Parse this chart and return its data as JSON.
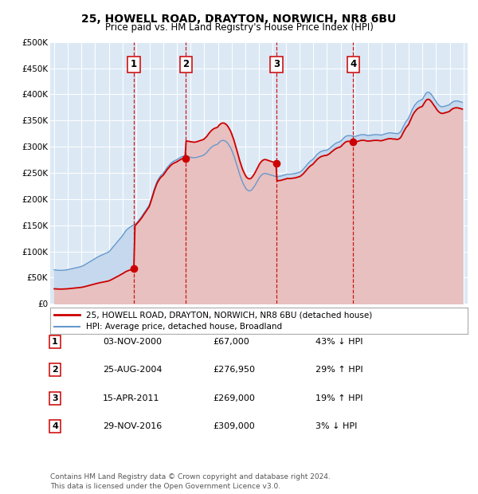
{
  "title": "25, HOWELL ROAD, DRAYTON, NORWICH, NR8 6BU",
  "subtitle": "Price paid vs. HM Land Registry's House Price Index (HPI)",
  "ylim": [
    0,
    500000
  ],
  "yticks": [
    0,
    50000,
    100000,
    150000,
    200000,
    250000,
    300000,
    350000,
    400000,
    450000,
    500000
  ],
  "ytick_labels": [
    "£0",
    "£50K",
    "£100K",
    "£150K",
    "£200K",
    "£250K",
    "£300K",
    "£350K",
    "£400K",
    "£450K",
    "£500K"
  ],
  "xlim_start": 1994.7,
  "xlim_end": 2025.3,
  "background_color": "#ffffff",
  "plot_bg_color": "#dce9f5",
  "grid_color": "#ffffff",
  "sale_color": "#cc0000",
  "hpi_color": "#6699cc",
  "hpi_fill_color": "#c5d8ed",
  "sale_fill_color": "#e8c0c0",
  "transactions": [
    {
      "num": 1,
      "date_str": "03-NOV-2000",
      "date_x": 2000.84,
      "price": 67000
    },
    {
      "num": 2,
      "date_str": "25-AUG-2004",
      "date_x": 2004.65,
      "price": 276950
    },
    {
      "num": 3,
      "date_str": "15-APR-2011",
      "date_x": 2011.29,
      "price": 269000
    },
    {
      "num": 4,
      "date_str": "29-NOV-2016",
      "date_x": 2016.91,
      "price": 309000
    }
  ],
  "legend_sale_label": "25, HOWELL ROAD, DRAYTON, NORWICH, NR8 6BU (detached house)",
  "legend_hpi_label": "HPI: Average price, detached house, Broadland",
  "footnote": "Contains HM Land Registry data © Crown copyright and database right 2024.\nThis data is licensed under the Open Government Licence v3.0.",
  "table_rows": [
    [
      "1",
      "03-NOV-2000",
      "£67,000",
      "43% ↓ HPI"
    ],
    [
      "2",
      "25-AUG-2004",
      "£276,950",
      "29% ↑ HPI"
    ],
    [
      "3",
      "15-APR-2011",
      "£269,000",
      "19% ↑ HPI"
    ],
    [
      "4",
      "29-NOV-2016",
      "£309,000",
      "3% ↓ HPI"
    ]
  ],
  "hpi_index": [
    [
      1995.0,
      100.0
    ],
    [
      1995.08,
      99.5
    ],
    [
      1995.17,
      99.0
    ],
    [
      1995.25,
      98.8
    ],
    [
      1995.33,
      98.5
    ],
    [
      1995.42,
      98.2
    ],
    [
      1995.5,
      98.0
    ],
    [
      1995.58,
      98.3
    ],
    [
      1995.67,
      98.6
    ],
    [
      1995.75,
      99.0
    ],
    [
      1995.83,
      99.4
    ],
    [
      1995.92,
      99.8
    ],
    [
      1996.0,
      100.5
    ],
    [
      1996.08,
      101.2
    ],
    [
      1996.17,
      102.0
    ],
    [
      1996.25,
      102.8
    ],
    [
      1996.33,
      103.5
    ],
    [
      1996.42,
      104.2
    ],
    [
      1996.5,
      105.0
    ],
    [
      1996.58,
      105.8
    ],
    [
      1996.67,
      106.5
    ],
    [
      1996.75,
      107.3
    ],
    [
      1996.83,
      108.2
    ],
    [
      1996.92,
      109.0
    ],
    [
      1997.0,
      110.0
    ],
    [
      1997.08,
      111.5
    ],
    [
      1997.17,
      113.0
    ],
    [
      1997.25,
      115.0
    ],
    [
      1997.33,
      117.0
    ],
    [
      1997.42,
      119.0
    ],
    [
      1997.5,
      121.0
    ],
    [
      1997.58,
      123.0
    ],
    [
      1997.67,
      125.0
    ],
    [
      1997.75,
      127.0
    ],
    [
      1997.83,
      129.0
    ],
    [
      1997.92,
      131.0
    ],
    [
      1998.0,
      133.0
    ],
    [
      1998.08,
      135.0
    ],
    [
      1998.17,
      137.0
    ],
    [
      1998.25,
      139.0
    ],
    [
      1998.33,
      140.5
    ],
    [
      1998.42,
      142.0
    ],
    [
      1998.5,
      143.5
    ],
    [
      1998.58,
      145.0
    ],
    [
      1998.67,
      146.5
    ],
    [
      1998.75,
      148.0
    ],
    [
      1998.83,
      149.5
    ],
    [
      1998.92,
      151.0
    ],
    [
      1999.0,
      153.0
    ],
    [
      1999.08,
      156.0
    ],
    [
      1999.17,
      160.0
    ],
    [
      1999.25,
      164.0
    ],
    [
      1999.33,
      168.0
    ],
    [
      1999.42,
      172.0
    ],
    [
      1999.5,
      176.0
    ],
    [
      1999.58,
      180.0
    ],
    [
      1999.67,
      184.0
    ],
    [
      1999.75,
      188.0
    ],
    [
      1999.83,
      192.0
    ],
    [
      1999.92,
      196.0
    ],
    [
      2000.0,
      200.0
    ],
    [
      2000.08,
      205.0
    ],
    [
      2000.17,
      210.0
    ],
    [
      2000.25,
      215.0
    ],
    [
      2000.33,
      218.0
    ],
    [
      2000.42,
      221.0
    ],
    [
      2000.5,
      224.0
    ],
    [
      2000.58,
      226.0
    ],
    [
      2000.67,
      228.0
    ],
    [
      2000.75,
      230.0
    ],
    [
      2000.83,
      232.0
    ],
    [
      2000.92,
      234.0
    ],
    [
      2001.0,
      236.0
    ],
    [
      2001.08,
      240.0
    ],
    [
      2001.17,
      244.0
    ],
    [
      2001.25,
      248.0
    ],
    [
      2001.33,
      252.0
    ],
    [
      2001.42,
      257.0
    ],
    [
      2001.5,
      262.0
    ],
    [
      2001.58,
      267.0
    ],
    [
      2001.67,
      272.0
    ],
    [
      2001.75,
      277.0
    ],
    [
      2001.83,
      282.0
    ],
    [
      2001.92,
      287.0
    ],
    [
      2002.0,
      294.0
    ],
    [
      2002.08,
      304.0
    ],
    [
      2002.17,
      315.0
    ],
    [
      2002.25,
      326.0
    ],
    [
      2002.33,
      337.0
    ],
    [
      2002.42,
      347.0
    ],
    [
      2002.5,
      356.0
    ],
    [
      2002.58,
      363.0
    ],
    [
      2002.67,
      369.0
    ],
    [
      2002.75,
      374.0
    ],
    [
      2002.83,
      378.0
    ],
    [
      2002.92,
      381.0
    ],
    [
      2003.0,
      384.0
    ],
    [
      2003.08,
      389.0
    ],
    [
      2003.17,
      394.0
    ],
    [
      2003.25,
      399.0
    ],
    [
      2003.33,
      403.0
    ],
    [
      2003.42,
      407.0
    ],
    [
      2003.5,
      411.0
    ],
    [
      2003.58,
      414.0
    ],
    [
      2003.67,
      417.0
    ],
    [
      2003.75,
      419.0
    ],
    [
      2003.83,
      421.0
    ],
    [
      2003.92,
      422.0
    ],
    [
      2004.0,
      424.0
    ],
    [
      2004.08,
      426.0
    ],
    [
      2004.17,
      428.0
    ],
    [
      2004.25,
      430.0
    ],
    [
      2004.33,
      432.0
    ],
    [
      2004.42,
      433.0
    ],
    [
      2004.5,
      433.5
    ],
    [
      2004.58,
      433.0
    ],
    [
      2004.67,
      432.5
    ],
    [
      2004.75,
      432.0
    ],
    [
      2004.83,
      431.5
    ],
    [
      2004.92,
      431.0
    ],
    [
      2005.0,
      430.5
    ],
    [
      2005.08,
      430.0
    ],
    [
      2005.17,
      429.5
    ],
    [
      2005.25,
      429.0
    ],
    [
      2005.33,
      429.5
    ],
    [
      2005.42,
      430.0
    ],
    [
      2005.5,
      431.0
    ],
    [
      2005.58,
      432.0
    ],
    [
      2005.67,
      433.0
    ],
    [
      2005.75,
      434.0
    ],
    [
      2005.83,
      435.0
    ],
    [
      2005.92,
      436.0
    ],
    [
      2006.0,
      438.0
    ],
    [
      2006.08,
      441.0
    ],
    [
      2006.17,
      444.0
    ],
    [
      2006.25,
      448.0
    ],
    [
      2006.33,
      452.0
    ],
    [
      2006.42,
      456.0
    ],
    [
      2006.5,
      459.0
    ],
    [
      2006.58,
      462.0
    ],
    [
      2006.67,
      464.0
    ],
    [
      2006.75,
      466.0
    ],
    [
      2006.83,
      467.0
    ],
    [
      2006.92,
      468.0
    ],
    [
      2007.0,
      470.0
    ],
    [
      2007.08,
      474.0
    ],
    [
      2007.17,
      477.0
    ],
    [
      2007.25,
      479.0
    ],
    [
      2007.33,
      480.0
    ],
    [
      2007.42,
      480.0
    ],
    [
      2007.5,
      479.0
    ],
    [
      2007.58,
      477.0
    ],
    [
      2007.67,
      474.0
    ],
    [
      2007.75,
      470.0
    ],
    [
      2007.83,
      465.0
    ],
    [
      2007.92,
      459.0
    ],
    [
      2008.0,
      452.0
    ],
    [
      2008.08,
      444.0
    ],
    [
      2008.17,
      435.0
    ],
    [
      2008.25,
      425.0
    ],
    [
      2008.33,
      415.0
    ],
    [
      2008.42,
      404.0
    ],
    [
      2008.5,
      393.0
    ],
    [
      2008.58,
      382.0
    ],
    [
      2008.67,
      372.0
    ],
    [
      2008.75,
      363.0
    ],
    [
      2008.83,
      355.0
    ],
    [
      2008.92,
      348.0
    ],
    [
      2009.0,
      342.0
    ],
    [
      2009.08,
      337.0
    ],
    [
      2009.17,
      334.0
    ],
    [
      2009.25,
      332.0
    ],
    [
      2009.33,
      332.0
    ],
    [
      2009.42,
      333.0
    ],
    [
      2009.5,
      336.0
    ],
    [
      2009.58,
      340.0
    ],
    [
      2009.67,
      345.0
    ],
    [
      2009.75,
      350.0
    ],
    [
      2009.83,
      356.0
    ],
    [
      2009.92,
      362.0
    ],
    [
      2010.0,
      368.0
    ],
    [
      2010.08,
      373.0
    ],
    [
      2010.17,
      377.0
    ],
    [
      2010.25,
      380.0
    ],
    [
      2010.33,
      382.0
    ],
    [
      2010.42,
      383.0
    ],
    [
      2010.5,
      383.0
    ],
    [
      2010.58,
      382.0
    ],
    [
      2010.67,
      381.0
    ],
    [
      2010.75,
      380.0
    ],
    [
      2010.83,
      379.0
    ],
    [
      2010.92,
      378.0
    ],
    [
      2011.0,
      377.0
    ],
    [
      2011.08,
      376.0
    ],
    [
      2011.17,
      375.0
    ],
    [
      2011.25,
      374.0
    ],
    [
      2011.33,
      374.0
    ],
    [
      2011.42,
      374.0
    ],
    [
      2011.5,
      375.0
    ],
    [
      2011.58,
      375.0
    ],
    [
      2011.67,
      376.0
    ],
    [
      2011.75,
      377.0
    ],
    [
      2011.83,
      378.0
    ],
    [
      2011.92,
      379.0
    ],
    [
      2012.0,
      380.0
    ],
    [
      2012.08,
      381.0
    ],
    [
      2012.17,
      381.0
    ],
    [
      2012.25,
      381.0
    ],
    [
      2012.33,
      381.0
    ],
    [
      2012.42,
      381.5
    ],
    [
      2012.5,
      382.0
    ],
    [
      2012.58,
      382.5
    ],
    [
      2012.67,
      383.0
    ],
    [
      2012.75,
      384.0
    ],
    [
      2012.83,
      385.0
    ],
    [
      2012.92,
      386.0
    ],
    [
      2013.0,
      387.0
    ],
    [
      2013.08,
      389.0
    ],
    [
      2013.17,
      392.0
    ],
    [
      2013.25,
      395.0
    ],
    [
      2013.33,
      399.0
    ],
    [
      2013.42,
      403.0
    ],
    [
      2013.5,
      407.0
    ],
    [
      2013.58,
      411.0
    ],
    [
      2013.67,
      415.0
    ],
    [
      2013.75,
      418.0
    ],
    [
      2013.83,
      421.0
    ],
    [
      2013.92,
      423.0
    ],
    [
      2014.0,
      426.0
    ],
    [
      2014.08,
      430.0
    ],
    [
      2014.17,
      434.0
    ],
    [
      2014.25,
      438.0
    ],
    [
      2014.33,
      441.0
    ],
    [
      2014.42,
      444.0
    ],
    [
      2014.5,
      446.0
    ],
    [
      2014.58,
      448.0
    ],
    [
      2014.67,
      449.0
    ],
    [
      2014.75,
      450.0
    ],
    [
      2014.83,
      451.0
    ],
    [
      2014.92,
      451.0
    ],
    [
      2015.0,
      452.0
    ],
    [
      2015.08,
      454.0
    ],
    [
      2015.17,
      456.0
    ],
    [
      2015.25,
      459.0
    ],
    [
      2015.33,
      462.0
    ],
    [
      2015.42,
      465.0
    ],
    [
      2015.5,
      468.0
    ],
    [
      2015.58,
      470.0
    ],
    [
      2015.67,
      472.0
    ],
    [
      2015.75,
      474.0
    ],
    [
      2015.83,
      475.0
    ],
    [
      2015.92,
      476.0
    ],
    [
      2016.0,
      478.0
    ],
    [
      2016.08,
      481.0
    ],
    [
      2016.17,
      485.0
    ],
    [
      2016.25,
      488.0
    ],
    [
      2016.33,
      491.0
    ],
    [
      2016.42,
      493.0
    ],
    [
      2016.5,
      494.0
    ],
    [
      2016.58,
      494.0
    ],
    [
      2016.67,
      494.0
    ],
    [
      2016.75,
      494.0
    ],
    [
      2016.83,
      493.0
    ],
    [
      2016.92,
      492.0
    ],
    [
      2017.0,
      492.0
    ],
    [
      2017.08,
      492.0
    ],
    [
      2017.17,
      493.0
    ],
    [
      2017.25,
      494.0
    ],
    [
      2017.33,
      495.0
    ],
    [
      2017.42,
      496.0
    ],
    [
      2017.5,
      497.0
    ],
    [
      2017.58,
      497.0
    ],
    [
      2017.67,
      497.0
    ],
    [
      2017.75,
      497.0
    ],
    [
      2017.83,
      496.0
    ],
    [
      2017.92,
      495.0
    ],
    [
      2018.0,
      495.0
    ],
    [
      2018.08,
      495.0
    ],
    [
      2018.17,
      495.0
    ],
    [
      2018.25,
      496.0
    ],
    [
      2018.33,
      496.0
    ],
    [
      2018.42,
      497.0
    ],
    [
      2018.5,
      497.0
    ],
    [
      2018.58,
      497.0
    ],
    [
      2018.67,
      497.0
    ],
    [
      2018.75,
      497.0
    ],
    [
      2018.83,
      496.0
    ],
    [
      2018.92,
      496.0
    ],
    [
      2019.0,
      496.0
    ],
    [
      2019.08,
      497.0
    ],
    [
      2019.17,
      498.0
    ],
    [
      2019.25,
      499.0
    ],
    [
      2019.33,
      500.0
    ],
    [
      2019.42,
      501.0
    ],
    [
      2019.5,
      502.0
    ],
    [
      2019.58,
      502.0
    ],
    [
      2019.67,
      502.0
    ],
    [
      2019.75,
      502.0
    ],
    [
      2019.83,
      501.0
    ],
    [
      2019.92,
      501.0
    ],
    [
      2020.0,
      501.0
    ],
    [
      2020.08,
      500.0
    ],
    [
      2020.17,
      500.0
    ],
    [
      2020.25,
      501.0
    ],
    [
      2020.33,
      503.0
    ],
    [
      2020.42,
      507.0
    ],
    [
      2020.5,
      513.0
    ],
    [
      2020.58,
      520.0
    ],
    [
      2020.67,
      527.0
    ],
    [
      2020.75,
      533.0
    ],
    [
      2020.83,
      538.0
    ],
    [
      2020.92,
      542.0
    ],
    [
      2021.0,
      547.0
    ],
    [
      2021.08,
      555.0
    ],
    [
      2021.17,
      563.0
    ],
    [
      2021.25,
      571.0
    ],
    [
      2021.33,
      577.0
    ],
    [
      2021.42,
      583.0
    ],
    [
      2021.5,
      587.0
    ],
    [
      2021.58,
      591.0
    ],
    [
      2021.67,
      594.0
    ],
    [
      2021.75,
      596.0
    ],
    [
      2021.83,
      598.0
    ],
    [
      2021.92,
      599.0
    ],
    [
      2022.0,
      601.0
    ],
    [
      2022.08,
      607.0
    ],
    [
      2022.17,
      613.0
    ],
    [
      2022.25,
      618.0
    ],
    [
      2022.33,
      621.0
    ],
    [
      2022.42,
      622.0
    ],
    [
      2022.5,
      621.0
    ],
    [
      2022.58,
      618.0
    ],
    [
      2022.67,
      614.0
    ],
    [
      2022.75,
      609.0
    ],
    [
      2022.83,
      604.0
    ],
    [
      2022.92,
      599.0
    ],
    [
      2023.0,
      594.0
    ],
    [
      2023.08,
      589.0
    ],
    [
      2023.17,
      585.0
    ],
    [
      2023.25,
      582.0
    ],
    [
      2023.33,
      580.0
    ],
    [
      2023.42,
      579.0
    ],
    [
      2023.5,
      579.0
    ],
    [
      2023.58,
      580.0
    ],
    [
      2023.67,
      581.0
    ],
    [
      2023.75,
      582.0
    ],
    [
      2023.83,
      583.0
    ],
    [
      2023.92,
      584.0
    ],
    [
      2024.0,
      586.0
    ],
    [
      2024.08,
      589.0
    ],
    [
      2024.17,
      592.0
    ],
    [
      2024.25,
      594.0
    ],
    [
      2024.33,
      595.0
    ],
    [
      2024.42,
      596.0
    ],
    [
      2024.5,
      596.0
    ],
    [
      2024.58,
      596.0
    ],
    [
      2024.67,
      595.0
    ],
    [
      2024.75,
      594.0
    ],
    [
      2024.83,
      593.0
    ],
    [
      2024.92,
      592.0
    ]
  ]
}
